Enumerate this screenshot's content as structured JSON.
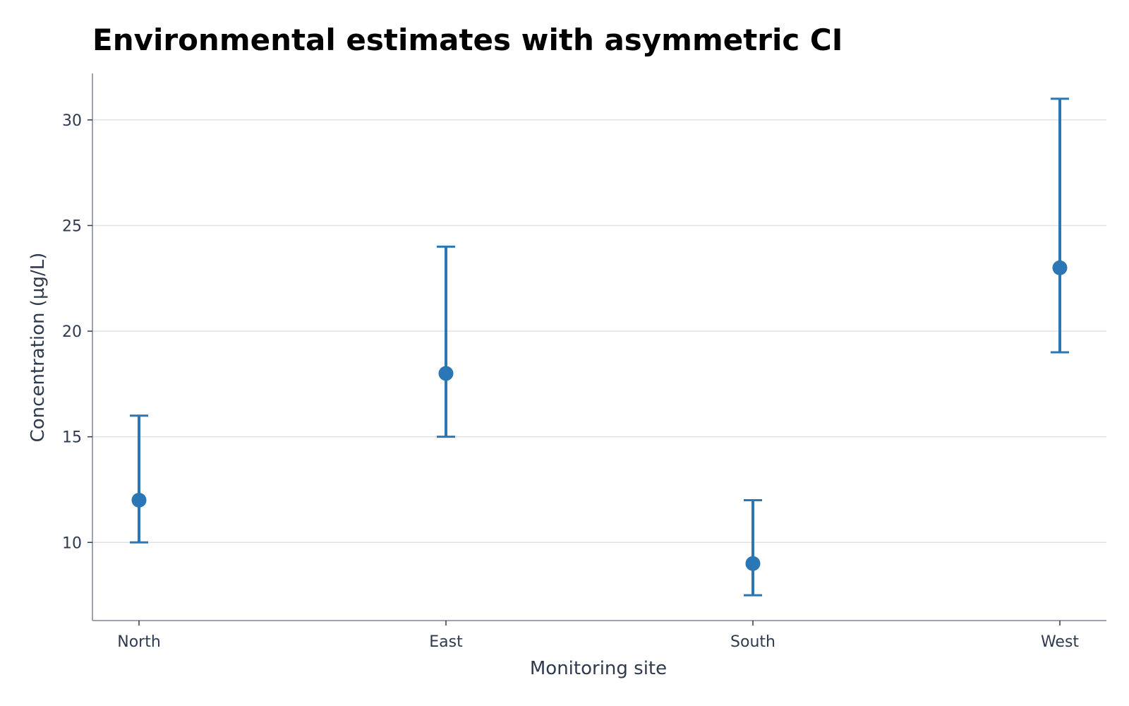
{
  "chart_data": {
    "type": "scatter",
    "title": "Environmental estimates with asymmetric CI",
    "xlabel": "Monitoring site",
    "ylabel": "Concentration (µg/L)",
    "categories": [
      "North",
      "East",
      "South",
      "West"
    ],
    "ylim": [
      6.3,
      32.2
    ],
    "yticks": [
      10,
      15,
      20,
      25,
      30
    ],
    "grid": "horizontal",
    "color": "#2b77b6",
    "points": [
      {
        "category": "North",
        "estimate": 12,
        "ci_low": 10,
        "ci_high": 16
      },
      {
        "category": "East",
        "estimate": 18,
        "ci_low": 15,
        "ci_high": 24
      },
      {
        "category": "South",
        "estimate": 9,
        "ci_low": 7.5,
        "ci_high": 12
      },
      {
        "category": "West",
        "estimate": 23,
        "ci_low": 19,
        "ci_high": 31
      }
    ]
  }
}
